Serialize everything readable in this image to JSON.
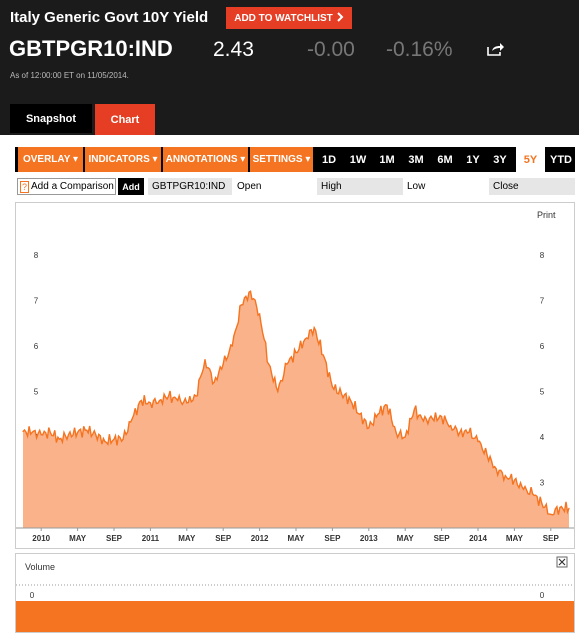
{
  "header": {
    "title": "Italy Generic Govt 10Y Yield",
    "watchlist_label": "ADD TO WATCHLIST",
    "ticker": "GBTPGR10:IND",
    "price": "2.43",
    "change": "-0.00",
    "percent_change": "-0.16%",
    "as_of": "As of 12:00:00 ET on 11/05/2014."
  },
  "tabs": {
    "snapshot": "Snapshot",
    "chart": "Chart"
  },
  "toolbar": {
    "menus": [
      "OVERLAY ▾",
      "INDICATORS ▾",
      "ANNOTATIONS ▾",
      "SETTINGS ▾"
    ],
    "ranges": [
      "1D",
      "1W",
      "1M",
      "3M",
      "6M",
      "1Y",
      "3Y",
      "5Y",
      "YTD"
    ],
    "active_range": "5Y"
  },
  "compare": {
    "placeholder": "Add a Comparison",
    "add_label": "Add",
    "symbol": "GBTPGR10:IND",
    "fields": [
      "Open",
      "High",
      "Low",
      "Close"
    ]
  },
  "print_label": "Print",
  "volume_label": "Volume",
  "colors": {
    "accent": "#f47421",
    "button_red": "#e53e25",
    "area_fill": "#f9b289"
  },
  "chart_data": {
    "type": "area",
    "x_ticks": [
      "2010",
      "MAY",
      "SEP",
      "2011",
      "MAY",
      "SEP",
      "2012",
      "MAY",
      "SEP",
      "2013",
      "MAY",
      "SEP",
      "2014",
      "MAY",
      "SEP"
    ],
    "y_ticks": [
      "3",
      "4",
      "5",
      "6",
      "7",
      "8"
    ],
    "ylim": [
      2.0,
      8.7
    ],
    "grid": false,
    "series": [
      {
        "values": [
          [
            "2009-11",
            4.12
          ],
          [
            "2009-12",
            4.1
          ],
          [
            "2010-01",
            4.05
          ],
          [
            "2010-02",
            4.1
          ],
          [
            "2010-03",
            3.95
          ],
          [
            "2010-04",
            4.05
          ],
          [
            "2010-05",
            4.1
          ],
          [
            "2010-06",
            4.15
          ],
          [
            "2010-07",
            4.05
          ],
          [
            "2010-08",
            3.9
          ],
          [
            "2010-09",
            3.95
          ],
          [
            "2010-10",
            3.95
          ],
          [
            "2010-11",
            4.4
          ],
          [
            "2010-12",
            4.8
          ],
          [
            "2011-01",
            4.75
          ],
          [
            "2011-02",
            4.8
          ],
          [
            "2011-03",
            4.9
          ],
          [
            "2011-04",
            4.8
          ],
          [
            "2011-05",
            4.75
          ],
          [
            "2011-06",
            4.9
          ],
          [
            "2011-07",
            5.7
          ],
          [
            "2011-08",
            5.2
          ],
          [
            "2011-09",
            5.6
          ],
          [
            "2011-10",
            6.0
          ],
          [
            "2011-11",
            6.9
          ],
          [
            "2011-12",
            7.2
          ],
          [
            "2012-01",
            6.7
          ],
          [
            "2012-02",
            5.6
          ],
          [
            "2012-03",
            5.0
          ],
          [
            "2012-04",
            5.6
          ],
          [
            "2012-05",
            5.85
          ],
          [
            "2012-06",
            6.15
          ],
          [
            "2012-07",
            6.4
          ],
          [
            "2012-08",
            5.8
          ],
          [
            "2012-09",
            5.1
          ],
          [
            "2012-10",
            4.95
          ],
          [
            "2012-11",
            4.8
          ],
          [
            "2012-12",
            4.5
          ],
          [
            "2013-01",
            4.2
          ],
          [
            "2013-02",
            4.5
          ],
          [
            "2013-03",
            4.7
          ],
          [
            "2013-04",
            4.1
          ],
          [
            "2013-05",
            4.0
          ],
          [
            "2013-06",
            4.6
          ],
          [
            "2013-07",
            4.35
          ],
          [
            "2013-08",
            4.4
          ],
          [
            "2013-09",
            4.45
          ],
          [
            "2013-10",
            4.25
          ],
          [
            "2013-11",
            4.1
          ],
          [
            "2013-12",
            4.1
          ],
          [
            "2014-01",
            3.9
          ],
          [
            "2014-02",
            3.6
          ],
          [
            "2014-03",
            3.3
          ],
          [
            "2014-04",
            3.15
          ],
          [
            "2014-05",
            3.05
          ],
          [
            "2014-06",
            2.85
          ],
          [
            "2014-07",
            2.75
          ],
          [
            "2014-08",
            2.55
          ],
          [
            "2014-09",
            2.3
          ],
          [
            "2014-10",
            2.45
          ],
          [
            "2014-11",
            2.43
          ]
        ]
      }
    ],
    "volume_ticks": [
      "0"
    ]
  }
}
